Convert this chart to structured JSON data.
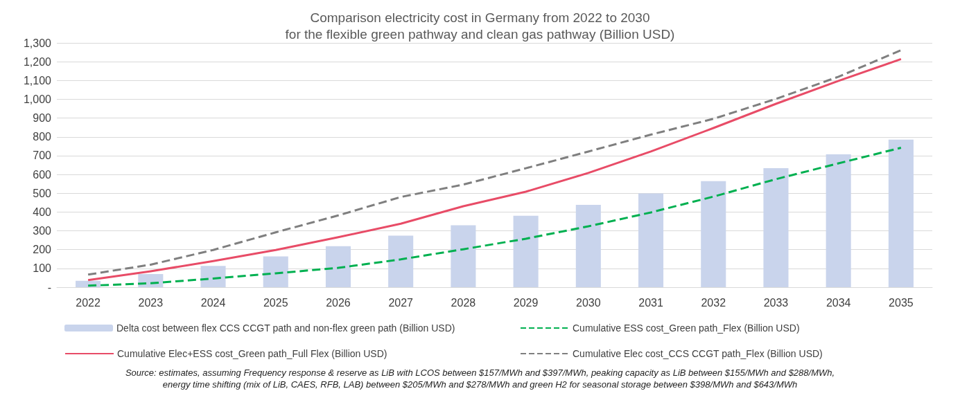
{
  "chart_data": {
    "type": "bar",
    "title": "Comparison electricity cost in Germany from 2022 to 2030\nfor the flexible green pathway and clean gas pathway (Billion USD)",
    "categories": [
      "2022",
      "2023",
      "2024",
      "2025",
      "2026",
      "2027",
      "2028",
      "2029",
      "2030",
      "2031",
      "2032",
      "2033",
      "2034",
      "2035"
    ],
    "series": [
      {
        "name": "Delta cost between flex CCS CCGT path and non-flex green path (Billion USD)",
        "color": "#c9d4ec",
        "values": [
          34,
          70,
          113,
          164,
          218,
          274,
          330,
          380,
          438,
          499,
          564,
          633,
          707,
          785
        ]
      },
      {
        "name": "Cumulative ESS cost_Green path_Flex (Billion USD)",
        "type": "line",
        "line_style": "dashed",
        "color": "#00b050",
        "values": [
          8,
          21,
          46,
          74,
          103,
          148,
          202,
          258,
          324,
          398,
          482,
          575,
          659,
          742
        ]
      },
      {
        "name": "Cumulative Elec+ESS cost_Green path_Full Flex (Billion USD)",
        "type": "line",
        "line_style": "solid",
        "color": "#e84c67",
        "values": [
          38,
          85,
          139,
          198,
          266,
          338,
          431,
          508,
          608,
          722,
          847,
          976,
          1098,
          1214
        ]
      },
      {
        "name": "Cumulative Elec cost_CCS CCGT path_Flex (Billion USD)",
        "type": "line",
        "line_style": "dashed",
        "color": "#7f7f7f",
        "values": [
          67,
          120,
          198,
          292,
          382,
          480,
          546,
          633,
          722,
          812,
          896,
          1002,
          1120,
          1261
        ]
      }
    ],
    "ylim": [
      0,
      1300
    ],
    "yticks": [
      {
        "value": 0,
        "label": "-"
      },
      100,
      200,
      300,
      400,
      500,
      600,
      700,
      800,
      900,
      {
        "value": 1000,
        "label": "1,000"
      },
      {
        "value": 1100,
        "label": "1,100"
      },
      {
        "value": 1200,
        "label": "1,200"
      },
      {
        "value": 1300,
        "label": "1,300"
      }
    ],
    "grid": "y",
    "legend": "bottom",
    "marker": "none",
    "annotations": [
      "Source: estimates, assuming Frequency response & reserve as LiB with LCOS between $157/MWh and $397/MWh, peaking capacity as LiB between $155/MWh and $288/MWh,\nenergy time shifting (mix of LiB, CAES, RFB, LAB) between $205/MWh and $278/MWh and green H2 for seasonal storage between $398/MWh and $643/MWh"
    ]
  }
}
